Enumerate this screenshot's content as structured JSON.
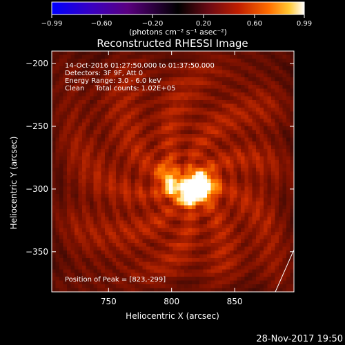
{
  "colorbar": {
    "tick_labels": [
      "−0.99",
      "−0.60",
      "−0.20",
      "0.20",
      "0.60",
      "0.99"
    ],
    "tick_values": [
      -0.99,
      -0.6,
      -0.2,
      0.2,
      0.6,
      0.99
    ],
    "unit_label": "(photons cm⁻² s⁻¹ asec⁻²)",
    "colormap": [
      "#0000ff",
      "#5a0080",
      "#000000",
      "#6a0a14",
      "#c01e00",
      "#ff6e00",
      "#ffc832",
      "#ffffff"
    ]
  },
  "image": {
    "title": "Reconstructed RHESSI Image",
    "xlabel": "Heliocentric X (arcsec)",
    "ylabel": "Heliocentric Y (arcsec)",
    "xlim": [
      705,
      897
    ],
    "ylim": [
      -382,
      -190
    ],
    "x_ticks": [
      750,
      800,
      850
    ],
    "y_ticks": [
      -200,
      -250,
      -300,
      -350
    ],
    "x_tick_labels": [
      "750",
      "800",
      "850"
    ],
    "y_tick_labels": [
      "−200",
      "−250",
      "−300",
      "−350"
    ],
    "info_lines": [
      "14-Oct-2016 01:27:50.000 to 01:37:50.000",
      "Detectors: 3F 9F, Att 0",
      "Energy Range: 3.0 - 6.0 keV",
      "Clean     Total counts: 1.02E+05"
    ],
    "peak_label": "Position of Peak = [823,-299]",
    "peak": [
      823,
      -299
    ],
    "sources": [
      {
        "x": 822,
        "y": -298,
        "amp": 1.0,
        "sigma": 8
      },
      {
        "x": 800,
        "y": -297,
        "amp": 0.55,
        "sigma": 6
      },
      {
        "x": 812,
        "y": -308,
        "amp": 0.45,
        "sigma": 5
      },
      {
        "x": 795,
        "y": -284,
        "amp": 0.28,
        "sigma": 5
      }
    ]
  },
  "footer": {
    "date": "28-Nov-2017 19:50"
  }
}
